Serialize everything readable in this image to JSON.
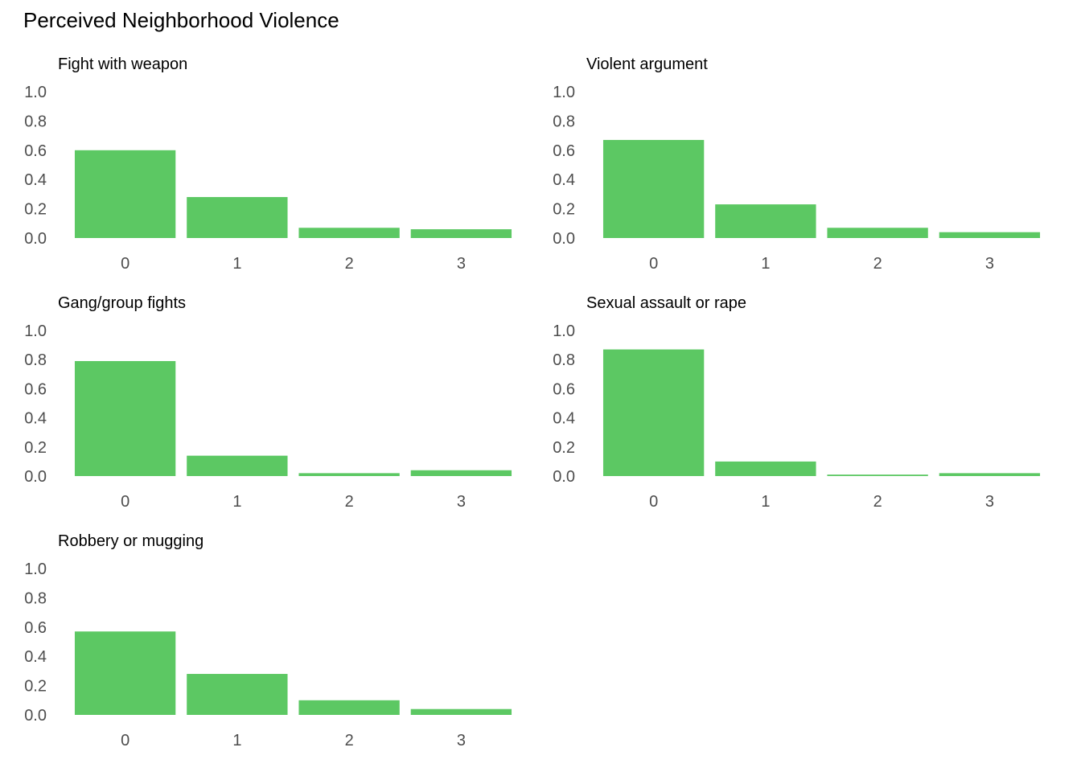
{
  "chart_data": {
    "type": "bar",
    "title": "Perceived Neighborhood Violence",
    "bar_color": "#5cc863",
    "ylim": [
      0,
      1.0
    ],
    "y_ticks": [
      "0.0",
      "0.2",
      "0.4",
      "0.6",
      "0.8",
      "1.0"
    ],
    "grid": false,
    "categories": [
      "0",
      "1",
      "2",
      "3"
    ],
    "panels": [
      {
        "title": "Fight with weapon",
        "values": [
          0.6,
          0.28,
          0.07,
          0.06
        ]
      },
      {
        "title": "Violent argument",
        "values": [
          0.67,
          0.23,
          0.07,
          0.04
        ]
      },
      {
        "title": "Gang/group fights",
        "values": [
          0.79,
          0.14,
          0.02,
          0.04
        ]
      },
      {
        "title": "Sexual assault or rape",
        "values": [
          0.87,
          0.1,
          0.01,
          0.02
        ]
      },
      {
        "title": "Robbery or mugging",
        "values": [
          0.57,
          0.28,
          0.1,
          0.04
        ]
      }
    ]
  }
}
